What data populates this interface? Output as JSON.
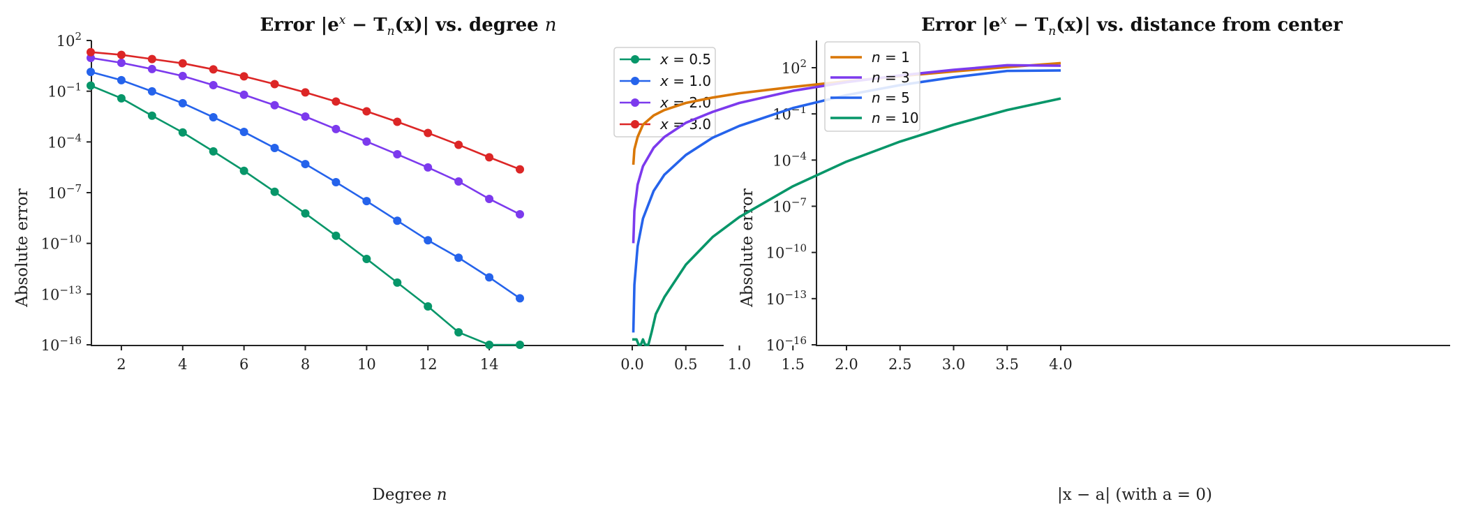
{
  "chart_data": [
    {
      "type": "line",
      "title": "Error |e^x − T_n(x)| vs. degree n",
      "xlabel": "Degree n",
      "ylabel": "Absolute error",
      "yscale": "log",
      "ylim": [
        1e-16,
        100
      ],
      "y_ticks": [
        "10^2",
        "10^-1",
        "10^-4",
        "10^-7",
        "10^-10",
        "10^-13",
        "10^-16"
      ],
      "x_ticks": [
        2,
        4,
        6,
        8,
        10,
        12,
        14
      ],
      "xlim": [
        0.4,
        15.6
      ],
      "grid": false,
      "legend_position": "upper right",
      "markers": true,
      "x": [
        1,
        2,
        3,
        4,
        5,
        6,
        7,
        8,
        9,
        10,
        11,
        12,
        13,
        14,
        15
      ],
      "series": [
        {
          "name": "x = 0.5",
          "color": "#079669",
          "log10_values": [
            -0.67,
            -1.42,
            -2.45,
            -3.44,
            -4.56,
            -5.71,
            -6.95,
            -8.23,
            -9.55,
            -10.92,
            -12.32,
            -13.73,
            -15.26,
            -16.0,
            -16.0
          ]
        },
        {
          "name": "x = 1.0",
          "color": "#2563eb",
          "log10_values": [
            0.14,
            -0.35,
            -1.01,
            -1.71,
            -2.54,
            -3.41,
            -4.36,
            -5.31,
            -6.38,
            -7.5,
            -8.66,
            -9.82,
            -10.85,
            -12.01,
            -13.25
          ]
        },
        {
          "name": "x = 2.0",
          "color": "#7c3aed",
          "log10_values": [
            0.97,
            0.68,
            0.31,
            -0.1,
            -0.64,
            -1.21,
            -1.83,
            -2.5,
            -3.24,
            -3.98,
            -4.73,
            -5.51,
            -6.34,
            -7.37,
            -8.28
          ]
        },
        {
          "name": "x = 3.0",
          "color": "#dc2626",
          "log10_values": [
            1.31,
            1.15,
            0.9,
            0.65,
            0.29,
            -0.12,
            -0.58,
            -1.07,
            -1.61,
            -2.19,
            -2.81,
            -3.47,
            -4.17,
            -4.91,
            -5.62
          ]
        }
      ]
    },
    {
      "type": "line",
      "title": "Error |e^x − T_n(x)| vs. distance from center",
      "xlabel": "|x − a| (with a = 0)",
      "ylabel": "Absolute error",
      "yscale": "log",
      "ylim": [
        1e-16,
        10000.0
      ],
      "y_ticks": [
        "10^2",
        "10^-1",
        "10^-4",
        "10^-7",
        "10^-10",
        "10^-13",
        "10^-16"
      ],
      "x_ticks": [
        "0.0",
        "0.5",
        "1.0",
        "1.5",
        "2.0",
        "2.5",
        "3.0",
        "3.5",
        "4.0"
      ],
      "xlim": [
        -0.2,
        4.2
      ],
      "grid": false,
      "legend_position": "upper left",
      "markers": false,
      "series": [
        {
          "name": "n = 1",
          "color": "#d97706",
          "x": [
            0.01,
            0.02,
            0.05,
            0.1,
            0.2,
            0.3,
            0.5,
            0.75,
            1.0,
            1.5,
            2.0,
            2.5,
            3.0,
            3.5,
            4.0
          ],
          "log10_values": [
            -4.3,
            -3.3,
            -2.5,
            -1.7,
            -1.1,
            -0.75,
            -0.29,
            0.06,
            0.34,
            0.75,
            1.12,
            1.45,
            1.76,
            2.04,
            2.3
          ]
        },
        {
          "name": "n = 3",
          "color": "#7c3aed",
          "x": [
            0.01,
            0.02,
            0.05,
            0.1,
            0.2,
            0.3,
            0.5,
            0.75,
            1.0,
            1.5,
            2.0,
            2.5,
            3.0,
            3.5,
            4.0
          ],
          "log10_values": [
            -9.4,
            -7.3,
            -5.6,
            -4.4,
            -3.2,
            -2.5,
            -1.58,
            -0.87,
            -0.29,
            0.5,
            1.06,
            1.5,
            1.86,
            2.16,
            2.13
          ]
        },
        {
          "name": "n = 5",
          "color": "#2563eb",
          "x": [
            0.01,
            0.02,
            0.05,
            0.1,
            0.2,
            0.3,
            0.5,
            0.75,
            1.0,
            1.5,
            2.0,
            2.5,
            3.0,
            3.5,
            4.0
          ],
          "log10_values": [
            -15.2,
            -12.1,
            -9.6,
            -7.8,
            -6.0,
            -4.95,
            -3.67,
            -2.55,
            -1.78,
            -0.62,
            0.22,
            0.87,
            1.38,
            1.79,
            1.82
          ]
        },
        {
          "name": "n = 10",
          "color": "#079669",
          "x": [
            0.0,
            0.04,
            0.06,
            0.08,
            0.1,
            0.12,
            0.15,
            0.18,
            0.22,
            0.3,
            0.5,
            0.75,
            1.0,
            1.5,
            2.0,
            2.5,
            3.0,
            3.5,
            4.0
          ],
          "log10_values": [
            -15.65,
            -15.65,
            -16.0,
            -16.0,
            -15.65,
            -16.0,
            -16.0,
            -15.2,
            -14.0,
            -12.9,
            -10.8,
            -9.0,
            -7.7,
            -5.7,
            -4.1,
            -2.8,
            -1.7,
            -0.75,
            0.0
          ]
        }
      ]
    }
  ],
  "left": {
    "title_prefix": "Error |e",
    "title_sup": "x",
    "title_mid": " − T",
    "title_sub": "n",
    "title_suffix": "(x)| vs. degree ",
    "title_n": "n",
    "xlabel_text": "Degree ",
    "xlabel_n": "n",
    "ylabel": "Absolute error",
    "legend": [
      "x = 0.5",
      "x = 1.0",
      "x = 2.0",
      "x = 3.0"
    ]
  },
  "right": {
    "title_prefix": "Error |e",
    "title_sup": "x",
    "title_mid": " − T",
    "title_sub": "n",
    "title_suffix": "(x)| vs. distance from center",
    "xlabel_text": "|x − a| (with a = 0)",
    "ylabel": "Absolute error",
    "legend": [
      "n = 1",
      "n = 3",
      "n = 5",
      "n = 10"
    ]
  }
}
